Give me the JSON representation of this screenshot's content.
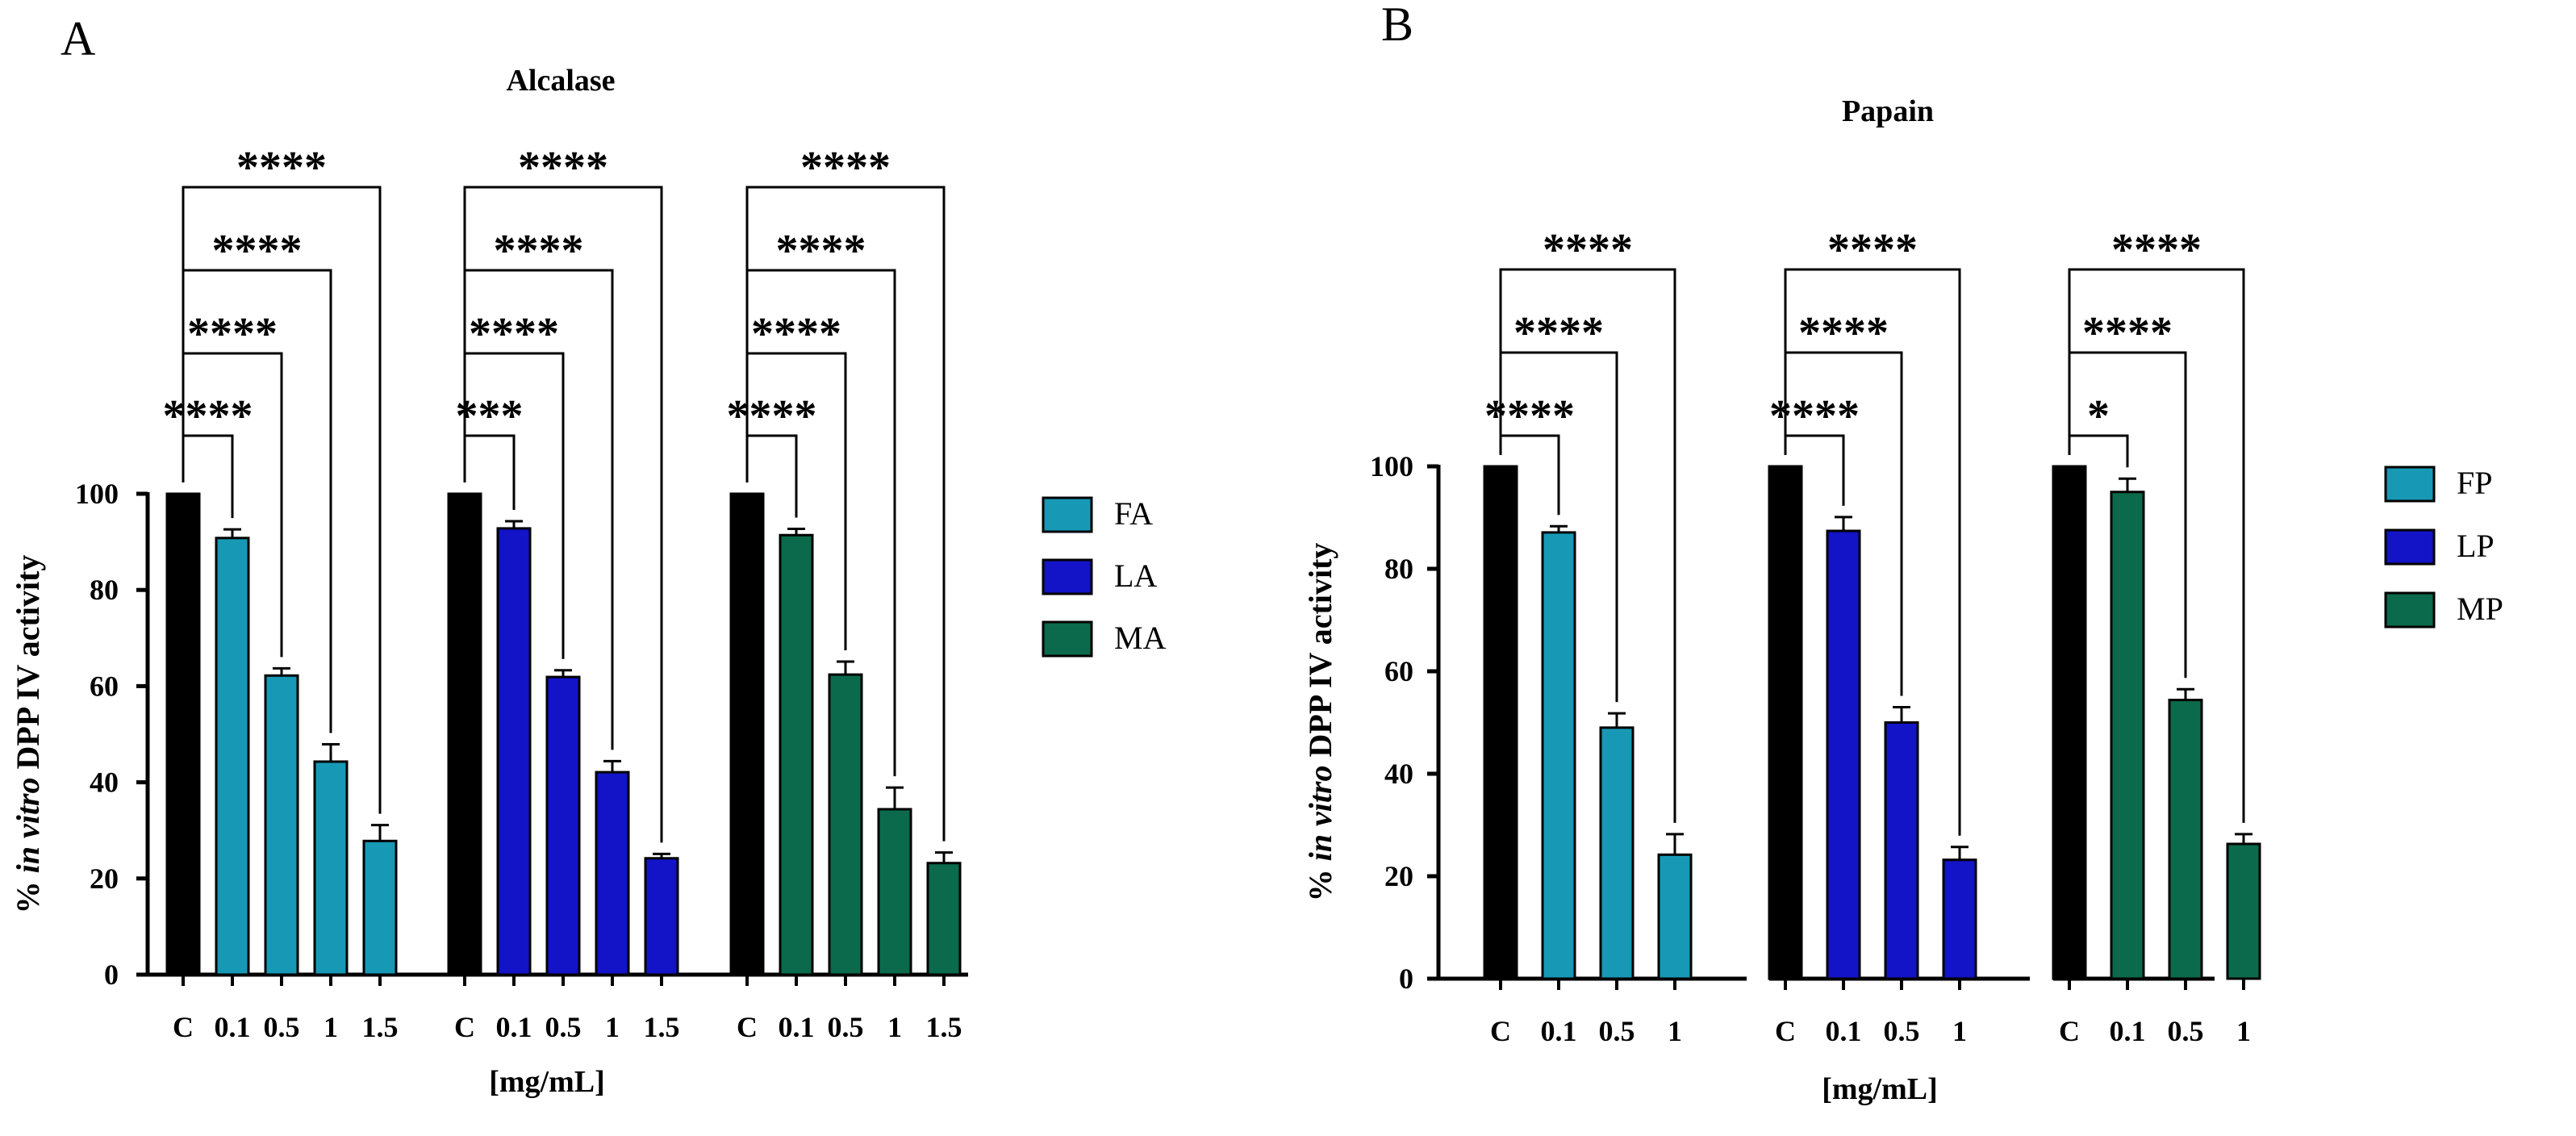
{
  "chart_data": [
    {
      "type": "bar",
      "panel_label": "A",
      "title": "Alcalase",
      "ylabel_prefix": "% ",
      "ylabel_italic": "in vitro",
      "ylabel_suffix": " DPP IV activity",
      "xlabel": "[mg/mL]",
      "ylim": [
        0,
        100
      ],
      "yticks": [
        "0",
        "20",
        "40",
        "60",
        "80",
        "100"
      ],
      "legend_position": "right",
      "groups": [
        {
          "name": "FA",
          "color": "#1799B5",
          "control_color": "#000000",
          "categories": [
            "C",
            "0.1",
            "0.5",
            "1",
            "1.5"
          ],
          "values": [
            100,
            90.8,
            62.2,
            44.3,
            27.8
          ],
          "errors": [
            0,
            1.8,
            1.5,
            3.6,
            3.3
          ],
          "comparisons": [
            "****",
            "****",
            "****",
            "****"
          ]
        },
        {
          "name": "LA",
          "color": "#1313C8",
          "control_color": "#000000",
          "categories": [
            "C",
            "0.1",
            "0.5",
            "1",
            "1.5"
          ],
          "values": [
            100,
            92.8,
            61.9,
            42.1,
            24.2
          ],
          "errors": [
            0,
            1.5,
            1.4,
            2.3,
            0.9
          ],
          "comparisons": [
            "***",
            "****",
            "****",
            "****"
          ]
        },
        {
          "name": "MA",
          "color": "#0B6A4B",
          "control_color": "#000000",
          "categories": [
            "C",
            "0.1",
            "0.5",
            "1",
            "1.5"
          ],
          "values": [
            100,
            91.4,
            62.4,
            34.4,
            23.2
          ],
          "errors": [
            0,
            1.3,
            2.7,
            4.5,
            2.2
          ],
          "comparisons": [
            "****",
            "****",
            "****",
            "****"
          ]
        }
      ]
    },
    {
      "type": "bar",
      "panel_label": "B",
      "title": "Papain",
      "ylabel_prefix": "% ",
      "ylabel_italic": "in vitro",
      "ylabel_suffix": " DPP IV activity",
      "xlabel": "[mg/mL]",
      "ylim": [
        0,
        100
      ],
      "yticks": [
        "0",
        "20",
        "40",
        "60",
        "80",
        "100"
      ],
      "legend_position": "right",
      "groups": [
        {
          "name": "FP",
          "color": "#1799B5",
          "control_color": "#000000",
          "categories": [
            "C",
            "0.1",
            "0.5",
            "1"
          ],
          "values": [
            100,
            87.1,
            49.0,
            24.2
          ],
          "errors": [
            0,
            1.2,
            2.8,
            4.0
          ],
          "comparisons": [
            "****",
            "****",
            "****"
          ]
        },
        {
          "name": "LP",
          "color": "#1313C8",
          "control_color": "#000000",
          "categories": [
            "C",
            "0.1",
            "0.5",
            "1"
          ],
          "values": [
            100,
            87.4,
            50.0,
            23.2
          ],
          "errors": [
            0,
            2.7,
            3.0,
            2.5
          ],
          "comparisons": [
            "****",
            "****",
            "****"
          ]
        },
        {
          "name": "MP",
          "color": "#0B6A4B",
          "control_color": "#000000",
          "categories": [
            "C",
            "0.1",
            "0.5",
            "1"
          ],
          "values": [
            100,
            95.0,
            54.4,
            26.3
          ],
          "errors": [
            0,
            2.6,
            2.1,
            1.9
          ],
          "comparisons": [
            "*",
            "****",
            "****"
          ]
        }
      ]
    }
  ]
}
